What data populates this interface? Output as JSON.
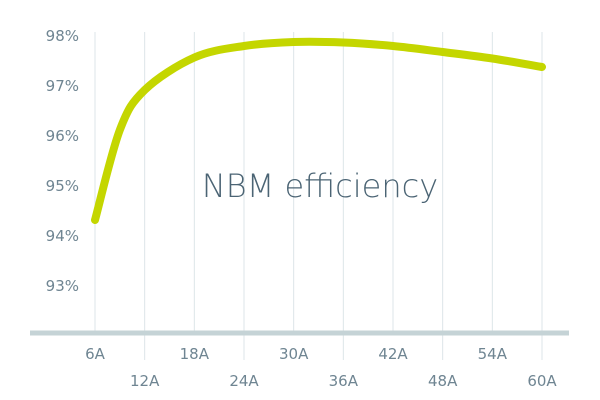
{
  "chart_data": {
    "type": "line",
    "title": "NBM efficiency",
    "xlabel": "",
    "ylabel": "",
    "x_ticks": [
      "6A",
      "12A",
      "18A",
      "24A",
      "30A",
      "36A",
      "42A",
      "48A",
      "54A",
      "60A"
    ],
    "y_ticks": [
      "93%",
      "94%",
      "95%",
      "96%",
      "97%",
      "98%"
    ],
    "xlim": [
      6,
      60
    ],
    "ylim": [
      92,
      98
    ],
    "grid": "vertical",
    "line_color": "#c4d600",
    "axis_color": "#c5d3d6",
    "series": [
      {
        "x": [
          6,
          9,
          12,
          18,
          24,
          30,
          36,
          42,
          48,
          54,
          60
        ],
        "y": [
          94.3,
          96.1,
          96.9,
          97.55,
          97.78,
          97.86,
          97.85,
          97.78,
          97.66,
          97.53,
          97.36
        ]
      }
    ]
  }
}
